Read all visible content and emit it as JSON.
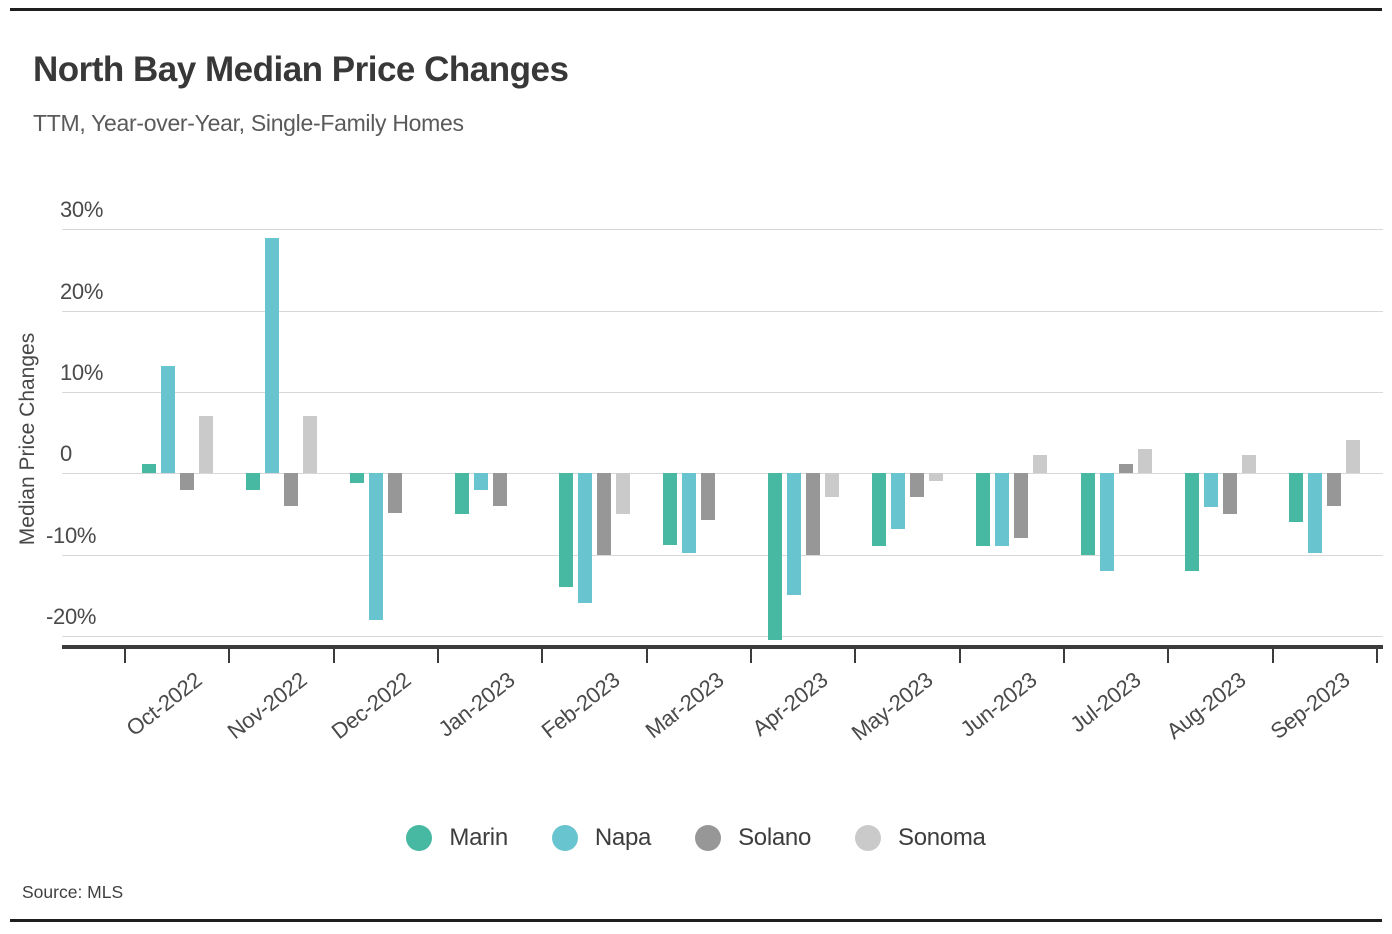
{
  "header": {
    "title": "North Bay Median Price Changes",
    "subtitle": "TTM, Year-over-Year, Single-Family Homes"
  },
  "source_note": "Source: MLS",
  "chart_data": {
    "type": "bar",
    "title": "North Bay Median Price Changes",
    "subtitle": "TTM, Year-over-Year, Single-Family Homes",
    "xlabel": "",
    "ylabel": "Median Price Changes",
    "ylim": [
      -21,
      30
    ],
    "grid": true,
    "legend_position": "bottom",
    "yticks": [
      {
        "value": 30,
        "label": "30%"
      },
      {
        "value": 20,
        "label": "20%"
      },
      {
        "value": 10,
        "label": "10%"
      },
      {
        "value": 0,
        "label": "0"
      },
      {
        "value": -10,
        "label": "-10%"
      },
      {
        "value": -20,
        "label": "-20%"
      }
    ],
    "categories": [
      "Oct-2022",
      "Nov-2022",
      "Dec-2022",
      "Jan-2023",
      "Feb-2023",
      "Mar-2023",
      "Apr-2023",
      "May-2023",
      "Jun-2023",
      "Jul-2023",
      "Aug-2023",
      "Sep-2023"
    ],
    "series": [
      {
        "name": "Marin",
        "color": "#47B9A3",
        "values": [
          1.1,
          -2,
          -1.2,
          -5,
          -14,
          -8.8,
          -20.5,
          -8.9,
          -8.9,
          -10,
          -12,
          -6
        ]
      },
      {
        "name": "Napa",
        "color": "#68C4CE",
        "values": [
          13.2,
          29,
          -18,
          -2,
          -16,
          -9.8,
          -15,
          -6.9,
          -9,
          -12,
          -4.1,
          -9.8
        ]
      },
      {
        "name": "Solano",
        "color": "#979797",
        "values": [
          -2,
          -4,
          -4.9,
          -4,
          -10,
          -5.8,
          -10,
          -2.9,
          -8,
          1.2,
          -5,
          -4
        ]
      },
      {
        "name": "Sonoma",
        "color": "#CACACA",
        "values": [
          7.1,
          7,
          0,
          0,
          -5,
          0,
          -2.9,
          -0.9,
          2.2,
          3,
          2.2,
          4.1
        ]
      }
    ],
    "units": "%"
  },
  "colors": {
    "marin": "#47B9A3",
    "napa": "#68C4CE",
    "solano": "#979797",
    "sonoma": "#CACACA",
    "gridline": "#d8d8d8",
    "axis": "#3b3b3b",
    "text_dark": "#383838",
    "text_medium": "#5a5a5a"
  }
}
